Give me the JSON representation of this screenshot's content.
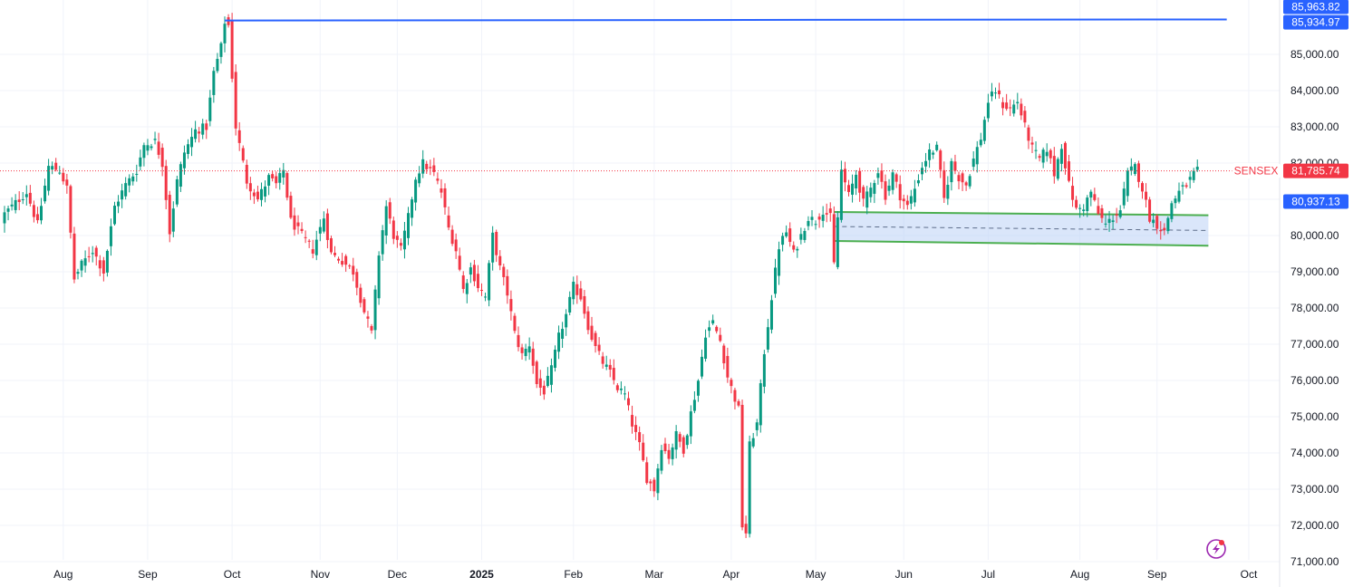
{
  "chart_data": {
    "type": "candlestick",
    "symbol": "SENSEX",
    "last_price": "81,785.74",
    "price_tags": [
      {
        "label": "85,963.82",
        "value": 85963.82,
        "color": "#2962ff"
      },
      {
        "label": "85,934.97",
        "value": 85934.97,
        "color": "#2962ff"
      },
      {
        "label": "80,937.13",
        "value": 80937.13,
        "color": "#2962ff"
      }
    ],
    "colors": {
      "up": "#089981",
      "down": "#f23645",
      "line": "#2962ff",
      "channel": "#4caf50",
      "channel_fill": "#bbd2f5"
    },
    "ylim": [
      70300,
      86500
    ],
    "y_ticks": [
      {
        "v": 71000,
        "l": "71,000.00"
      },
      {
        "v": 72000,
        "l": "72,000.00"
      },
      {
        "v": 73000,
        "l": "73,000.00"
      },
      {
        "v": 74000,
        "l": "74,000.00"
      },
      {
        "v": 75000,
        "l": "75,000.00"
      },
      {
        "v": 76000,
        "l": "76,000.00"
      },
      {
        "v": 77000,
        "l": "77,000.00"
      },
      {
        "v": 78000,
        "l": "78,000.00"
      },
      {
        "v": 79000,
        "l": "79,000.00"
      },
      {
        "v": 80000,
        "l": "80,000.00"
      },
      {
        "v": 81000,
        "l": "81,000.00"
      },
      {
        "v": 82000,
        "l": "82,000.00"
      },
      {
        "v": 83000,
        "l": "83,000.00"
      },
      {
        "v": 84000,
        "l": "84,000.00"
      },
      {
        "v": 85000,
        "l": "85,000.00"
      }
    ],
    "x_ticks": [
      {
        "i": 16,
        "l": "Aug"
      },
      {
        "i": 39,
        "l": "Sep"
      },
      {
        "i": 62,
        "l": "Oct"
      },
      {
        "i": 86,
        "l": "Nov"
      },
      {
        "i": 107,
        "l": "Dec"
      },
      {
        "i": 130,
        "l": "2025",
        "bold": true
      },
      {
        "i": 155,
        "l": "Feb"
      },
      {
        "i": 177,
        "l": "Mar"
      },
      {
        "i": 198,
        "l": "Apr"
      },
      {
        "i": 221,
        "l": "May"
      },
      {
        "i": 245,
        "l": "Jun"
      },
      {
        "i": 268,
        "l": "Jul"
      },
      {
        "i": 293,
        "l": "Aug"
      },
      {
        "i": 314,
        "l": "Sep"
      },
      {
        "i": 339,
        "l": "Oct"
      }
    ],
    "horizontal_line": {
      "from_i": 60,
      "to_i": 333,
      "y1": 85934.97,
      "y2": 85963.82
    },
    "channel": {
      "from_i": 226,
      "to_i": 328,
      "top": [
        80650,
        80560
      ],
      "bottom": [
        79850,
        79720
      ],
      "mid": [
        80250,
        80140
      ]
    },
    "path": [
      [
        0,
        80600
      ],
      [
        3,
        80900
      ],
      [
        6,
        81200
      ],
      [
        9,
        80300
      ],
      [
        12,
        81900
      ],
      [
        15,
        81800
      ],
      [
        17,
        81300
      ],
      [
        19,
        78800
      ],
      [
        21,
        79200
      ],
      [
        24,
        79600
      ],
      [
        27,
        79000
      ],
      [
        30,
        80800
      ],
      [
        33,
        81400
      ],
      [
        36,
        81800
      ],
      [
        38,
        82500
      ],
      [
        41,
        82600
      ],
      [
        43,
        82000
      ],
      [
        45,
        80100
      ],
      [
        47,
        81500
      ],
      [
        49,
        82300
      ],
      [
        52,
        82900
      ],
      [
        55,
        83000
      ],
      [
        57,
        84500
      ],
      [
        59,
        85200
      ],
      [
        60,
        85900
      ],
      [
        61,
        85800
      ],
      [
        63,
        83000
      ],
      [
        66,
        81500
      ],
      [
        69,
        81000
      ],
      [
        72,
        81600
      ],
      [
        74,
        81400
      ],
      [
        76,
        81800
      ],
      [
        78,
        80400
      ],
      [
        81,
        80000
      ],
      [
        84,
        79600
      ],
      [
        87,
        80500
      ],
      [
        89,
        79500
      ],
      [
        92,
        79300
      ],
      [
        95,
        79000
      ],
      [
        98,
        77900
      ],
      [
        100,
        77300
      ],
      [
        102,
        79500
      ],
      [
        104,
        80800
      ],
      [
        106,
        80000
      ],
      [
        108,
        79600
      ],
      [
        110,
        80500
      ],
      [
        112,
        81600
      ],
      [
        114,
        82000
      ],
      [
        117,
        81700
      ],
      [
        119,
        81200
      ],
      [
        121,
        80200
      ],
      [
        123,
        79600
      ],
      [
        125,
        78500
      ],
      [
        127,
        79100
      ],
      [
        129,
        78600
      ],
      [
        131,
        78300
      ],
      [
        133,
        80000
      ],
      [
        135,
        79100
      ],
      [
        137,
        78400
      ],
      [
        139,
        77300
      ],
      [
        141,
        76700
      ],
      [
        143,
        77000
      ],
      [
        145,
        75900
      ],
      [
        147,
        75700
      ],
      [
        149,
        76300
      ],
      [
        151,
        77200
      ],
      [
        153,
        77800
      ],
      [
        155,
        78600
      ],
      [
        157,
        78300
      ],
      [
        159,
        77500
      ],
      [
        161,
        76900
      ],
      [
        163,
        76500
      ],
      [
        165,
        76200
      ],
      [
        167,
        75800
      ],
      [
        169,
        75600
      ],
      [
        171,
        74800
      ],
      [
        173,
        74200
      ],
      [
        175,
        73300
      ],
      [
        177,
        73000
      ],
      [
        179,
        74200
      ],
      [
        181,
        73900
      ],
      [
        183,
        74500
      ],
      [
        185,
        74100
      ],
      [
        187,
        75100
      ],
      [
        189,
        76000
      ],
      [
        191,
        77300
      ],
      [
        193,
        77600
      ],
      [
        195,
        77100
      ],
      [
        197,
        76100
      ],
      [
        199,
        75500
      ],
      [
        200,
        75200
      ],
      [
        201,
        72000
      ],
      [
        202,
        71800
      ],
      [
        203,
        74200
      ],
      [
        205,
        74800
      ],
      [
        207,
        76800
      ],
      [
        209,
        78300
      ],
      [
        211,
        79700
      ],
      [
        213,
        80100
      ],
      [
        215,
        79500
      ],
      [
        217,
        80000
      ],
      [
        219,
        80500
      ],
      [
        221,
        80400
      ],
      [
        223,
        80700
      ],
      [
        225,
        80500
      ],
      [
        226,
        79200
      ],
      [
        227,
        80500
      ],
      [
        228,
        81800
      ],
      [
        230,
        81100
      ],
      [
        232,
        81700
      ],
      [
        234,
        80900
      ],
      [
        236,
        81300
      ],
      [
        238,
        81800
      ],
      [
        240,
        81100
      ],
      [
        242,
        81700
      ],
      [
        244,
        81100
      ],
      [
        246,
        80800
      ],
      [
        248,
        81300
      ],
      [
        250,
        81900
      ],
      [
        252,
        82300
      ],
      [
        254,
        82400
      ],
      [
        256,
        81000
      ],
      [
        258,
        82000
      ],
      [
        260,
        81600
      ],
      [
        262,
        81400
      ],
      [
        264,
        82100
      ],
      [
        266,
        82700
      ],
      [
        268,
        83700
      ],
      [
        270,
        84000
      ],
      [
        272,
        83600
      ],
      [
        274,
        83500
      ],
      [
        276,
        83700
      ],
      [
        278,
        83000
      ],
      [
        280,
        82400
      ],
      [
        282,
        82100
      ],
      [
        284,
        82400
      ],
      [
        286,
        81700
      ],
      [
        288,
        82500
      ],
      [
        290,
        81400
      ],
      [
        292,
        80700
      ],
      [
        294,
        80800
      ],
      [
        296,
        81200
      ],
      [
        298,
        80600
      ],
      [
        300,
        80300
      ],
      [
        302,
        80500
      ],
      [
        304,
        80700
      ],
      [
        306,
        81700
      ],
      [
        308,
        81900
      ],
      [
        310,
        81300
      ],
      [
        312,
        80500
      ],
      [
        314,
        80300
      ],
      [
        316,
        80100
      ],
      [
        318,
        80900
      ],
      [
        320,
        81200
      ],
      [
        322,
        81400
      ],
      [
        324,
        81700
      ],
      [
        325,
        81785.74
      ]
    ]
  }
}
